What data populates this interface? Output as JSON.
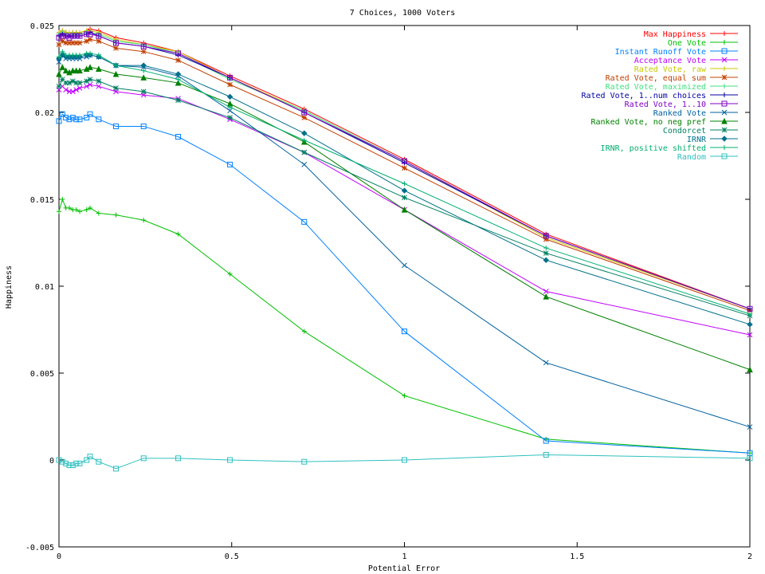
{
  "chart_data": {
    "type": "line",
    "title": "7 Choices, 1000 Voters",
    "xlabel": "Potential Error",
    "ylabel": "Happiness",
    "xlim": [
      0,
      2
    ],
    "ylim": [
      -0.005,
      0.025
    ],
    "x_ticks": [
      0,
      0.5,
      1,
      1.5,
      2
    ],
    "x_tick_labels": [
      "0",
      "0.5",
      "1",
      "1.5",
      "2"
    ],
    "y_ticks": [
      -0.005,
      0,
      0.005,
      0.01,
      0.015,
      0.02,
      0.025
    ],
    "y_tick_labels": [
      "-0.005",
      "0",
      "0.005",
      "0.01",
      "0.015",
      "0.02",
      "0.025"
    ],
    "grid": false,
    "legend_position": "top-right",
    "x": [
      0,
      0.01,
      0.02,
      0.03,
      0.04,
      0.05,
      0.06,
      0.08,
      0.09,
      0.115,
      0.165,
      0.245,
      0.345,
      0.495,
      0.71,
      1.0,
      1.41,
      2.0
    ],
    "series": [
      {
        "name": "Max Happiness",
        "color": "#ff0000",
        "marker": "plus",
        "values": [
          0.0246,
          0.0247,
          0.0246,
          0.0246,
          0.0246,
          0.0246,
          0.0246,
          0.0247,
          0.0248,
          0.0247,
          0.0243,
          0.024,
          0.0235,
          0.0221,
          0.0202,
          0.0173,
          0.013,
          0.0087
        ]
      },
      {
        "name": "One Vote",
        "color": "#00c000",
        "marker": "plus",
        "values": [
          0.0143,
          0.015,
          0.0145,
          0.0145,
          0.0144,
          0.0144,
          0.0143,
          0.0144,
          0.0145,
          0.0142,
          0.0141,
          0.0138,
          0.013,
          0.0107,
          0.0074,
          0.0037,
          0.0012,
          0.0004
        ]
      },
      {
        "name": "Instant Runoff Vote",
        "color": "#0080ff",
        "marker": "square",
        "values": [
          0.0195,
          0.0199,
          0.0197,
          0.0196,
          0.0197,
          0.0196,
          0.0196,
          0.0197,
          0.0199,
          0.0196,
          0.0192,
          0.0192,
          0.0186,
          0.017,
          0.0137,
          0.0074,
          0.0011,
          0.0004
        ]
      },
      {
        "name": "Acceptance Vote",
        "color": "#c000ff",
        "marker": "x",
        "values": [
          0.0213,
          0.0215,
          0.0213,
          0.0212,
          0.0212,
          0.0213,
          0.0214,
          0.0215,
          0.0216,
          0.0215,
          0.0212,
          0.021,
          0.0208,
          0.0196,
          0.0177,
          0.0144,
          0.0097,
          0.0072
        ]
      },
      {
        "name": "Rated Vote, raw",
        "color": "#c8c800",
        "marker": "plus",
        "values": [
          0.0246,
          0.0247,
          0.0246,
          0.0246,
          0.0246,
          0.0246,
          0.0246,
          0.0247,
          0.0247,
          0.0246,
          0.0242,
          0.0239,
          0.0235,
          0.022,
          0.0201,
          0.0172,
          0.0128,
          0.0087
        ]
      },
      {
        "name": "Rated Vote, equal sum",
        "color": "#c04000",
        "marker": "star",
        "values": [
          0.0239,
          0.0241,
          0.024,
          0.024,
          0.024,
          0.024,
          0.024,
          0.0241,
          0.0242,
          0.0241,
          0.0237,
          0.0235,
          0.023,
          0.0216,
          0.0197,
          0.0168,
          0.0127,
          0.0086
        ]
      },
      {
        "name": "Rated Vote, maximized",
        "color": "#40e080",
        "marker": "plus",
        "values": [
          0.0245,
          0.0246,
          0.0245,
          0.0245,
          0.0245,
          0.0245,
          0.0245,
          0.0246,
          0.0246,
          0.0245,
          0.0241,
          0.0239,
          0.0234,
          0.0219,
          0.0201,
          0.0172,
          0.0129,
          0.0087
        ]
      },
      {
        "name": "Rated Vote, 1..num choices",
        "color": "#0000a0",
        "marker": "plus",
        "values": [
          0.0244,
          0.0245,
          0.0244,
          0.0244,
          0.0244,
          0.0244,
          0.0244,
          0.0245,
          0.0246,
          0.0244,
          0.024,
          0.0238,
          0.0233,
          0.022,
          0.02,
          0.0171,
          0.0129,
          0.0087
        ]
      },
      {
        "name": "Rated Vote, 1..10",
        "color": "#8000c0",
        "marker": "square",
        "values": [
          0.0243,
          0.0244,
          0.0244,
          0.0243,
          0.0244,
          0.0244,
          0.0244,
          0.0245,
          0.0245,
          0.0244,
          0.024,
          0.0238,
          0.0234,
          0.022,
          0.02,
          0.0172,
          0.0129,
          0.0087
        ]
      },
      {
        "name": "Ranked Vote",
        "color": "#0060a0",
        "marker": "x",
        "values": [
          0.0229,
          0.0233,
          0.0231,
          0.0231,
          0.0231,
          0.0231,
          0.0231,
          0.0232,
          0.0233,
          0.0232,
          0.0227,
          0.0226,
          0.0221,
          0.0201,
          0.017,
          0.0112,
          0.0056,
          0.0019
        ]
      },
      {
        "name": "Ranked Vote, no neg pref",
        "color": "#008000",
        "marker": "triangle",
        "values": [
          0.0222,
          0.0226,
          0.0224,
          0.0223,
          0.0224,
          0.0224,
          0.0224,
          0.0225,
          0.0226,
          0.0225,
          0.0222,
          0.022,
          0.0217,
          0.0205,
          0.0183,
          0.0144,
          0.0094,
          0.0052
        ]
      },
      {
        "name": "Condorcet",
        "color": "#008060",
        "marker": "star",
        "values": [
          0.0215,
          0.0219,
          0.0217,
          0.0217,
          0.0218,
          0.0217,
          0.0217,
          0.0218,
          0.0219,
          0.0218,
          0.0214,
          0.0212,
          0.0207,
          0.0197,
          0.0177,
          0.0151,
          0.0119,
          0.0083
        ]
      },
      {
        "name": "IRNR",
        "color": "#00708c",
        "marker": "diamond",
        "values": [
          0.0231,
          0.0233,
          0.0232,
          0.0232,
          0.0232,
          0.0232,
          0.0232,
          0.0233,
          0.0233,
          0.0232,
          0.0227,
          0.0227,
          0.0222,
          0.0209,
          0.0188,
          0.0155,
          0.0115,
          0.0078
        ]
      },
      {
        "name": "IRNR, positive shifted",
        "color": "#00b070",
        "marker": "plus",
        "values": [
          0.0232,
          0.0235,
          0.0233,
          0.0233,
          0.0233,
          0.0233,
          0.0233,
          0.0234,
          0.0234,
          0.0233,
          0.0227,
          0.0224,
          0.0219,
          0.0203,
          0.0184,
          0.0159,
          0.0122,
          0.0084
        ]
      },
      {
        "name": "Random",
        "color": "#30c0c0",
        "marker": "square",
        "values": [
          0.0,
          -0.0001,
          -0.0002,
          -0.0003,
          -0.0003,
          -0.0002,
          -0.0002,
          0.0,
          0.0002,
          -0.0001,
          -0.0005,
          0.0001,
          0.0001,
          0.0,
          -0.0001,
          0.0,
          0.0003,
          0.0001
        ]
      }
    ]
  }
}
